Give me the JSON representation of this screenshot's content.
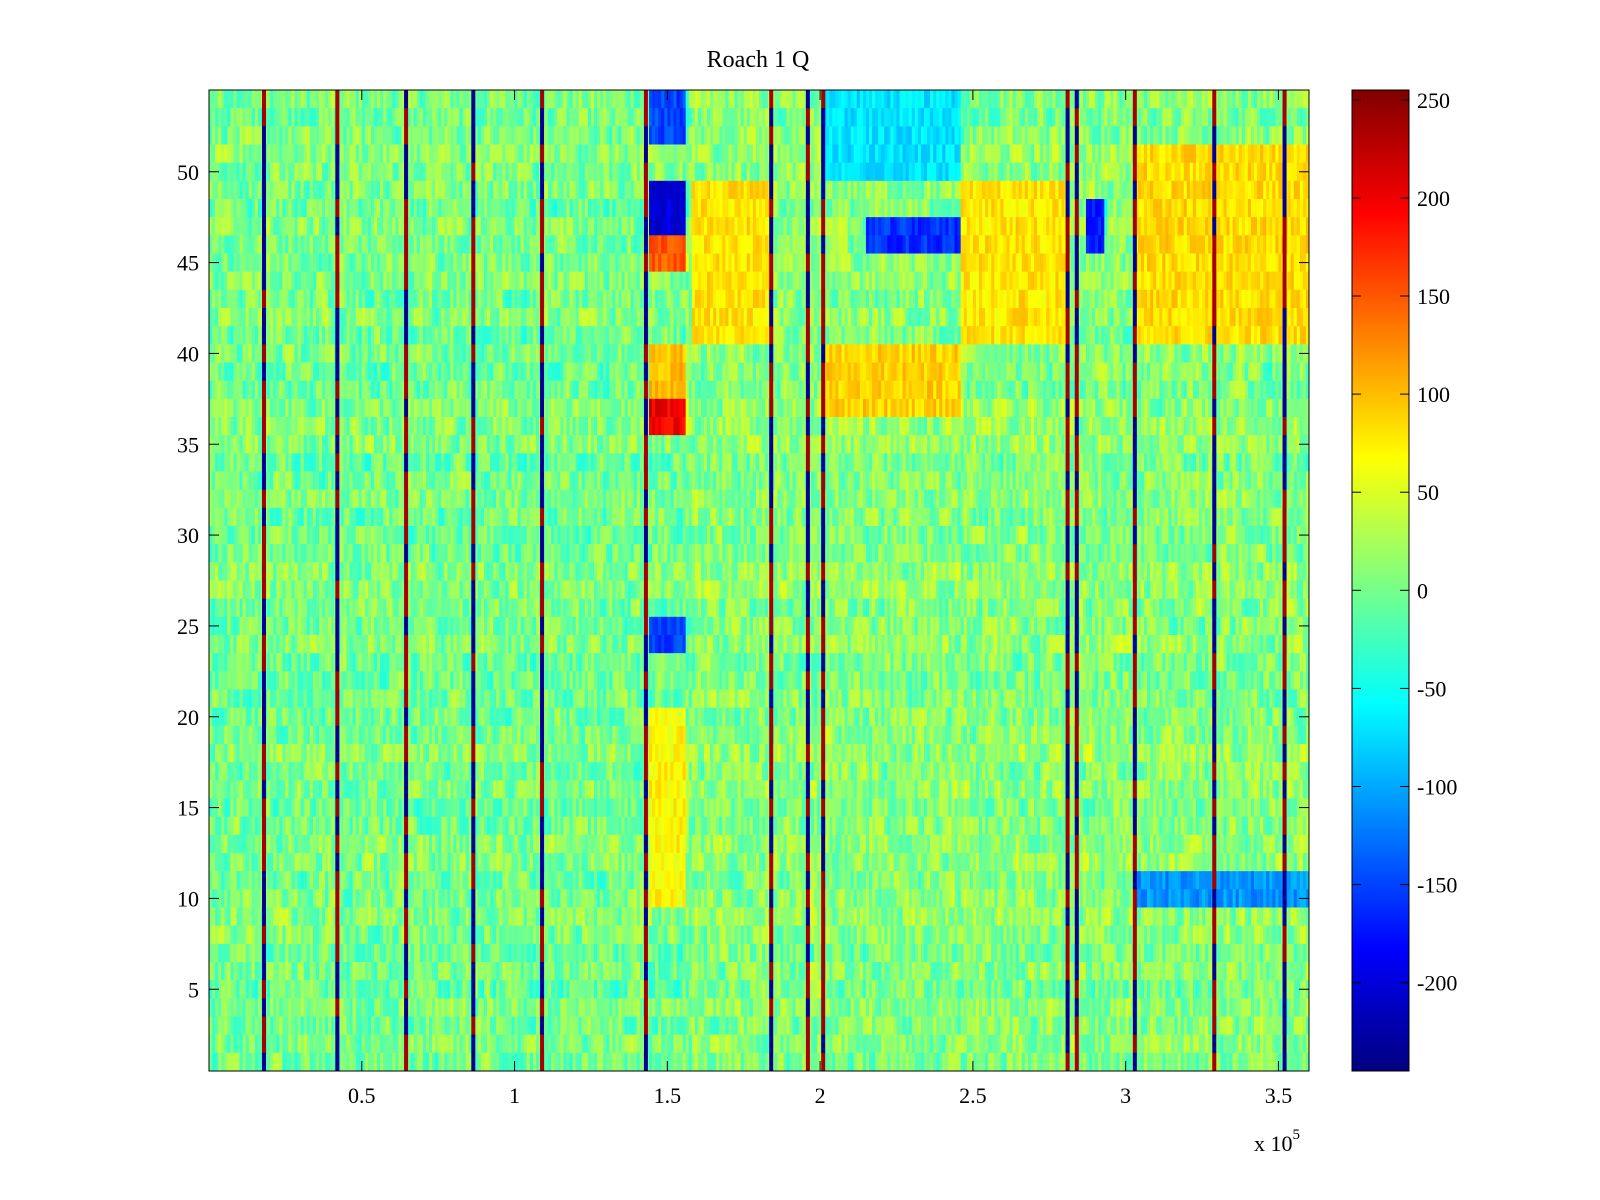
{
  "chart_data": {
    "type": "heatmap",
    "title": "Roach 1 Q",
    "xlabel": "",
    "ylabel": "",
    "x_multiplier_label": "x 10",
    "x_multiplier_exponent": "5",
    "xlim": [
      0,
      3.6
    ],
    "ylim": [
      0.5,
      54.5
    ],
    "rows": 54,
    "x_ticks": [
      0.5,
      1,
      1.5,
      2,
      2.5,
      3,
      3.5
    ],
    "x_tick_labels": [
      "0.5",
      "1",
      "1.5",
      "2",
      "2.5",
      "3",
      "3.5"
    ],
    "y_ticks": [
      5,
      10,
      15,
      20,
      25,
      30,
      35,
      40,
      45,
      50
    ],
    "y_tick_labels": [
      "5",
      "10",
      "15",
      "20",
      "25",
      "30",
      "35",
      "40",
      "45",
      "50"
    ],
    "colorbar": {
      "colormap": "jet",
      "clim": [
        -245,
        255
      ],
      "ticks": [
        -200,
        -150,
        -100,
        -50,
        0,
        50,
        100,
        150,
        200,
        250
      ],
      "tick_labels": [
        "-200",
        "-150",
        "-100",
        "-50",
        "0",
        "50",
        "100",
        "150",
        "200",
        "250"
      ]
    },
    "stripe_columns_x": [
      0.18,
      0.42,
      0.645,
      0.865,
      1.09,
      1.43,
      1.84,
      1.96,
      2.01,
      2.81,
      2.84,
      3.03,
      3.29,
      3.52
    ],
    "regions": [
      {
        "x": [
          1.44,
          1.56
        ],
        "rows": [
          46,
          49
        ],
        "value": -200
      },
      {
        "x": [
          1.44,
          1.56
        ],
        "rows": [
          52,
          54
        ],
        "value": -150
      },
      {
        "x": [
          1.44,
          1.56
        ],
        "rows": [
          24,
          25
        ],
        "value": -150
      },
      {
        "x": [
          1.44,
          1.56
        ],
        "rows": [
          36,
          37
        ],
        "value": 200
      },
      {
        "x": [
          1.44,
          1.56
        ],
        "rows": [
          45,
          46
        ],
        "value": 150
      },
      {
        "x": [
          1.44,
          1.56
        ],
        "rows": [
          38,
          40
        ],
        "value": 100
      },
      {
        "x": [
          1.44,
          1.56
        ],
        "rows": [
          10,
          20
        ],
        "value": 70
      },
      {
        "x": [
          1.58,
          1.84
        ],
        "rows": [
          41,
          49
        ],
        "value": 80
      },
      {
        "x": [
          2.01,
          2.46
        ],
        "rows": [
          37,
          40
        ],
        "value": 90
      },
      {
        "x": [
          2.15,
          2.46
        ],
        "rows": [
          46,
          47
        ],
        "value": -160
      },
      {
        "x": [
          2.01,
          2.46
        ],
        "rows": [
          50,
          54
        ],
        "value": -70
      },
      {
        "x": [
          2.46,
          2.81
        ],
        "rows": [
          41,
          49
        ],
        "value": 80
      },
      {
        "x": [
          2.87,
          2.93
        ],
        "rows": [
          46,
          48
        ],
        "value": -170
      },
      {
        "x": [
          3.03,
          3.6
        ],
        "rows": [
          41,
          51
        ],
        "value": 85
      },
      {
        "x": [
          3.03,
          3.6
        ],
        "rows": [
          10,
          11
        ],
        "value": -110
      }
    ]
  }
}
